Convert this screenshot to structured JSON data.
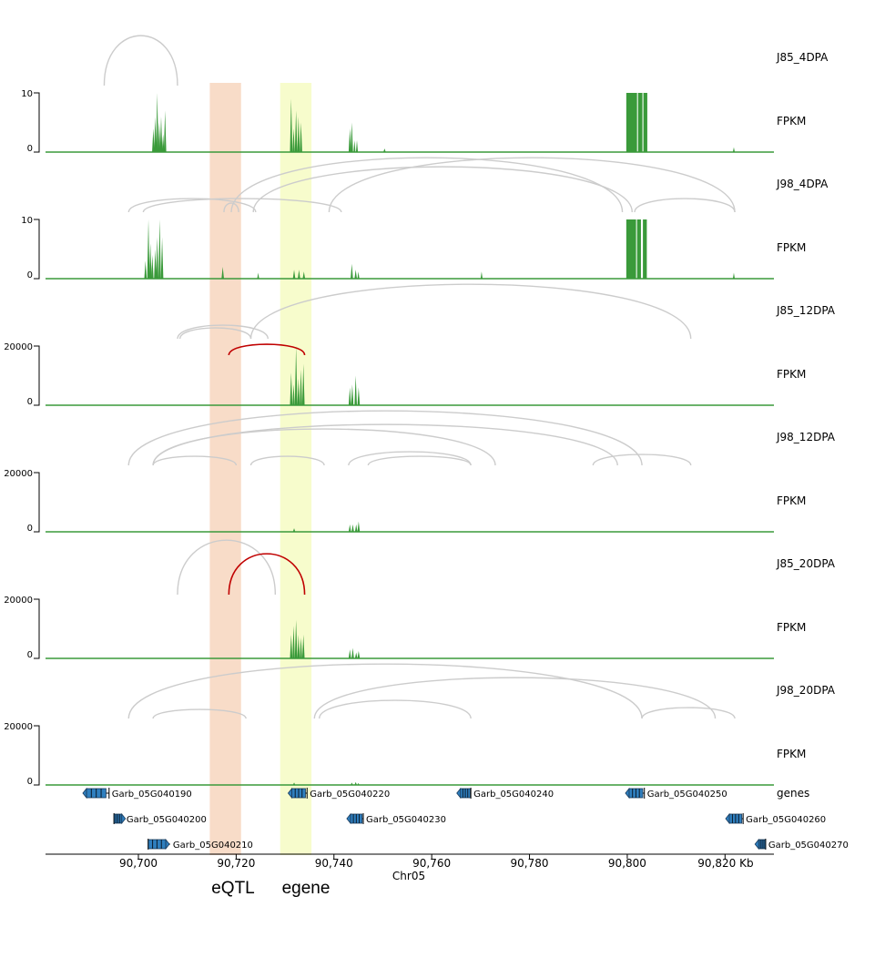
{
  "chart_data": {
    "type": "area",
    "xlabel": "Chr05",
    "x_unit": "Kb",
    "xlim": [
      90681,
      90830
    ],
    "x_ticks": [
      {
        "value": 90700,
        "label": "90,700"
      },
      {
        "value": 90720,
        "label": "90,720"
      },
      {
        "value": 90740,
        "label": "90,740"
      },
      {
        "value": 90760,
        "label": "90,760"
      },
      {
        "value": 90780,
        "label": "90,780"
      },
      {
        "value": 90800,
        "label": "90,800"
      },
      {
        "value": 90820,
        "label": "90,820 Kb"
      }
    ],
    "highlights": [
      {
        "label": "eQTL",
        "start": 90714.6,
        "end": 90721.0,
        "color": "#f8dcc8"
      },
      {
        "label": "egene",
        "start": 90729.0,
        "end": 90735.4,
        "color": "#f7fccc"
      }
    ],
    "coverage_color": "#3a9a3a",
    "tracks": [
      {
        "sample": "J85_4DPA",
        "ylabel": "FPKM",
        "y_ticks": [
          "10",
          "0"
        ],
        "ymax": 10,
        "peaks": [
          [
            90702.8,
            90703.3,
            4
          ],
          [
            90703.2,
            90703.7,
            6
          ],
          [
            90703.6,
            90704.1,
            10
          ],
          [
            90704.0,
            90704.5,
            5
          ],
          [
            90704.4,
            90704.9,
            6
          ],
          [
            90704.8,
            90705.3,
            3
          ],
          [
            90705.2,
            90705.7,
            7
          ],
          [
            90731.0,
            90731.5,
            9
          ],
          [
            90731.5,
            90732.0,
            4
          ],
          [
            90732.0,
            90732.5,
            7
          ],
          [
            90732.5,
            90733.0,
            6
          ],
          [
            90733.0,
            90733.5,
            5
          ],
          [
            90743.0,
            90743.5,
            4
          ],
          [
            90743.4,
            90743.9,
            5
          ],
          [
            90744.0,
            90744.4,
            2
          ],
          [
            90744.5,
            90744.9,
            2
          ],
          [
            90750.1,
            90750.6,
            0.6
          ],
          [
            90821.6,
            90822.0,
            0.8
          ]
        ],
        "blocks": [
          [
            90799.8,
            90802.0,
            10
          ],
          [
            90802.2,
            90803.1,
            10
          ],
          [
            90803.3,
            90804.1,
            10
          ]
        ],
        "arcs": [
          {
            "from": 90693.0,
            "to": 90708.0,
            "height": 55,
            "up": true,
            "color": "#cccccc"
          }
        ]
      },
      {
        "sample": "J98_4DPA",
        "ylabel": "FPKM",
        "y_ticks": [
          "10",
          "0"
        ],
        "ymax": 10,
        "peaks": [
          [
            90701.2,
            90701.7,
            3
          ],
          [
            90701.8,
            90702.3,
            10
          ],
          [
            90702.2,
            90702.7,
            6
          ],
          [
            90702.6,
            90703.1,
            4
          ],
          [
            90703.2,
            90703.7,
            5
          ],
          [
            90703.6,
            90704.1,
            7
          ],
          [
            90704.1,
            90704.6,
            10
          ],
          [
            90704.6,
            90705.1,
            7
          ],
          [
            90717.0,
            90717.5,
            2
          ],
          [
            90724.3,
            90724.7,
            1
          ],
          [
            90731.6,
            90732.1,
            1.5
          ],
          [
            90732.6,
            90733.1,
            1.5
          ],
          [
            90733.6,
            90734.1,
            1.2
          ],
          [
            90743.4,
            90743.9,
            2.5
          ],
          [
            90744.2,
            90744.7,
            1.5
          ],
          [
            90744.8,
            90745.2,
            1.2
          ],
          [
            90770.0,
            90770.4,
            1.2
          ],
          [
            90821.6,
            90822.0,
            1
          ]
        ],
        "blocks": [
          [
            90799.8,
            90801.8,
            10
          ],
          [
            90802.0,
            90802.8,
            10
          ],
          [
            90803.2,
            90804.0,
            10
          ]
        ],
        "arcs": [
          {
            "from": 90698.0,
            "to": 90724.0,
            "height": 15,
            "up": true,
            "color": "#cccccc"
          },
          {
            "from": 90701.0,
            "to": 90741.5,
            "height": 15,
            "up": true,
            "color": "#cccccc"
          },
          {
            "from": 90717.5,
            "to": 90720.5,
            "height": 10,
            "up": true,
            "color": "#cccccc"
          },
          {
            "from": 90719.0,
            "to": 90799.0,
            "height": 60,
            "up": true,
            "color": "#cccccc"
          },
          {
            "from": 90723.5,
            "to": 90801.0,
            "height": 50,
            "up": true,
            "color": "#cccccc"
          },
          {
            "from": 90739.0,
            "to": 90822.0,
            "height": 60,
            "up": true,
            "color": "#cccccc"
          },
          {
            "from": 90801.5,
            "to": 90822.0,
            "height": 15,
            "up": true,
            "color": "#cccccc"
          }
        ]
      },
      {
        "sample": "J85_12DPA",
        "ylabel": "FPKM",
        "y_ticks": [
          "20000",
          "0"
        ],
        "ymax": 20000,
        "peaks": [
          [
            90731.0,
            90731.5,
            11000
          ],
          [
            90731.5,
            90732.0,
            7000
          ],
          [
            90732.0,
            90732.5,
            20000
          ],
          [
            90732.5,
            90733.0,
            9000
          ],
          [
            90733.0,
            90733.5,
            12000
          ],
          [
            90733.5,
            90734.0,
            14000
          ],
          [
            90743.0,
            90743.5,
            6000
          ],
          [
            90743.5,
            90744.0,
            7000
          ],
          [
            90744.2,
            90744.7,
            10000
          ],
          [
            90744.8,
            90745.3,
            6000
          ]
        ],
        "blocks": [],
        "arcs": [
          {
            "from": 90708.0,
            "to": 90726.5,
            "height": 15,
            "up": true,
            "color": "#cccccc"
          },
          {
            "from": 90708.5,
            "to": 90723.0,
            "height": 12,
            "up": true,
            "color": "#cccccc"
          },
          {
            "from": 90723.0,
            "to": 90813.0,
            "height": 60,
            "up": true,
            "color": "#cccccc"
          },
          {
            "from": 90718.5,
            "to": 90734.0,
            "height": 12,
            "up": true,
            "color": "#c00000"
          }
        ]
      },
      {
        "sample": "J98_12DPA",
        "ylabel": "FPKM",
        "y_ticks": [
          "20000",
          "0"
        ],
        "ymax": 20000,
        "peaks": [
          [
            90731.6,
            90732.1,
            1200
          ],
          [
            90743.0,
            90743.5,
            2500
          ],
          [
            90743.6,
            90744.1,
            2500
          ],
          [
            90744.3,
            90744.8,
            2500
          ],
          [
            90744.8,
            90745.3,
            3500
          ]
        ],
        "blocks": [],
        "arcs": [
          {
            "from": 90698.0,
            "to": 90803.0,
            "height": 60,
            "up": true,
            "color": "#cccccc"
          },
          {
            "from": 90703.0,
            "to": 90798.0,
            "height": 45,
            "up": true,
            "color": "#cccccc"
          },
          {
            "from": 90703.0,
            "to": 90773.0,
            "height": 40,
            "up": true,
            "color": "#cccccc"
          },
          {
            "from": 90703.0,
            "to": 90720.0,
            "height": 10,
            "up": true,
            "color": "#cccccc"
          },
          {
            "from": 90723.0,
            "to": 90738.0,
            "height": 10,
            "up": true,
            "color": "#cccccc"
          },
          {
            "from": 90743.0,
            "to": 90768.0,
            "height": 15,
            "up": true,
            "color": "#cccccc"
          },
          {
            "from": 90747.0,
            "to": 90768.0,
            "height": 10,
            "up": true,
            "color": "#cccccc"
          },
          {
            "from": 90793.0,
            "to": 90813.0,
            "height": 12,
            "up": true,
            "color": "#cccccc"
          }
        ]
      },
      {
        "sample": "J85_20DPA",
        "ylabel": "FPKM",
        "y_ticks": [
          "20000",
          "0"
        ],
        "ymax": 20000,
        "peaks": [
          [
            90731.0,
            90731.5,
            8000
          ],
          [
            90731.5,
            90732.0,
            11000
          ],
          [
            90732.0,
            90732.5,
            13000
          ],
          [
            90732.5,
            90733.0,
            8000
          ],
          [
            90733.0,
            90733.5,
            7000
          ],
          [
            90733.5,
            90734.0,
            8000
          ],
          [
            90743.0,
            90743.5,
            3000
          ],
          [
            90743.6,
            90744.1,
            3500
          ],
          [
            90744.3,
            90744.8,
            2000
          ],
          [
            90744.8,
            90745.3,
            2500
          ]
        ],
        "blocks": [],
        "arcs": [
          {
            "from": 90708.0,
            "to": 90728.0,
            "height": 60,
            "up": true,
            "color": "#cccccc"
          },
          {
            "from": 90718.5,
            "to": 90734.0,
            "height": 45,
            "up": true,
            "color": "#c00000"
          }
        ]
      },
      {
        "sample": "J98_20DPA",
        "ylabel": "FPKM",
        "y_ticks": [
          "20000",
          "0"
        ],
        "ymax": 20000,
        "peaks": [
          [
            90731.6,
            90732.1,
            800
          ],
          [
            90743.4,
            90743.9,
            800
          ],
          [
            90744.2,
            90744.7,
            1000
          ],
          [
            90744.8,
            90745.2,
            700
          ]
        ],
        "blocks": [],
        "arcs": [
          {
            "from": 90698.0,
            "to": 90803.0,
            "height": 60,
            "up": true,
            "color": "#cccccc"
          },
          {
            "from": 90703.0,
            "to": 90722.0,
            "height": 10,
            "up": true,
            "color": "#cccccc"
          },
          {
            "from": 90736.0,
            "to": 90818.0,
            "height": 45,
            "up": true,
            "color": "#cccccc"
          },
          {
            "from": 90737.0,
            "to": 90768.0,
            "height": 20,
            "up": true,
            "color": "#cccccc"
          },
          {
            "from": 90803.0,
            "to": 90822.0,
            "height": 12,
            "up": true,
            "color": "#cccccc"
          }
        ]
      }
    ],
    "genes_track_label": "genes",
    "genes": [
      {
        "name": "Garb_05G040190",
        "start": 90689.0,
        "end": 90694.0,
        "row": 0,
        "strand": "-"
      },
      {
        "name": "Garb_05G040200",
        "start": 90695.0,
        "end": 90697.0,
        "row": 1,
        "strand": "+"
      },
      {
        "name": "Garb_05G040210",
        "start": 90702.0,
        "end": 90706.5,
        "row": 2,
        "strand": "+"
      },
      {
        "name": "Garb_05G040220",
        "start": 90731.0,
        "end": 90734.5,
        "row": 0,
        "strand": "-"
      },
      {
        "name": "Garb_05G040230",
        "start": 90743.0,
        "end": 90746.0,
        "row": 1,
        "strand": "-"
      },
      {
        "name": "Garb_05G040240",
        "start": 90765.5,
        "end": 90768.0,
        "row": 0,
        "strand": "-"
      },
      {
        "name": "Garb_05G040250",
        "start": 90800.0,
        "end": 90803.5,
        "row": 0,
        "strand": "-"
      },
      {
        "name": "Garb_05G040260",
        "start": 90820.5,
        "end": 90823.7,
        "row": 1,
        "strand": "-"
      },
      {
        "name": "Garb_05G040270",
        "start": 90826.5,
        "end": 90828.3,
        "row": 2,
        "strand": "-"
      }
    ]
  }
}
